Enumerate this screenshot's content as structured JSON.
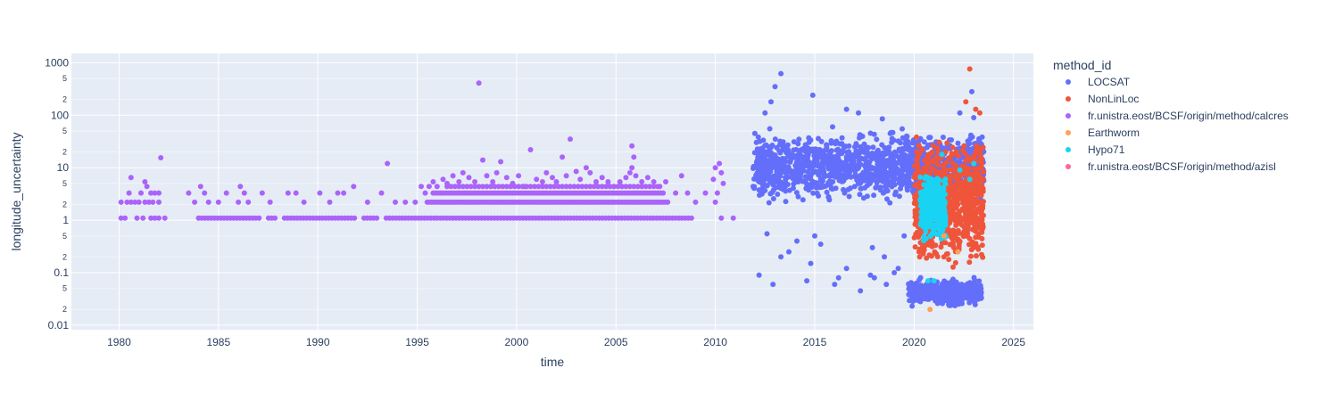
{
  "chart_data": {
    "type": "scatter",
    "xlabel": "time",
    "ylabel": "longitude_uncertainty",
    "y_scale": "log",
    "xlim": [
      1977.6,
      2026.0
    ],
    "ylim": [
      0.0082,
      1500
    ],
    "x_ticks": [
      "1980",
      "1985",
      "1990",
      "1995",
      "2000",
      "2005",
      "2010",
      "2015",
      "2020",
      "2025"
    ],
    "y_major_ticks": [
      "0.01",
      "0.1",
      "1",
      "10",
      "100",
      "1000"
    ],
    "y_minor_ticks": [
      "2",
      "5"
    ],
    "grid": true,
    "plot_background": "#e5ecf6",
    "legend": {
      "title": "method_id",
      "placement": "right",
      "entries": [
        {
          "name": "LOCSAT",
          "color": "#636efa"
        },
        {
          "name": "NonLinLoc",
          "color": "#EF553B"
        },
        {
          "name": "fr.unistra.eost/BCSF/origin/method/calcres",
          "color": "#ab63fa"
        },
        {
          "name": "Earthworm",
          "color": "#FFA15A"
        },
        {
          "name": "Hypo71",
          "color": "#19d3f3"
        },
        {
          "name": "fr.unistra.eost/BCSF/origin/method/azisl",
          "color": "#FF6692"
        }
      ]
    },
    "series": [
      {
        "name": "fr.unistra.eost/BCSF/origin/method/calcres",
        "color": "#ab63fa",
        "points": [
          [
            1980.1,
            1.1
          ],
          [
            1980.3,
            1.1
          ],
          [
            1980.9,
            1.1
          ],
          [
            1981.2,
            1.1
          ],
          [
            1981.6,
            1.1
          ],
          [
            1981.8,
            1.1
          ],
          [
            1982.0,
            1.1
          ],
          [
            1982.3,
            1.1
          ],
          [
            1980.1,
            2.2
          ],
          [
            1980.4,
            2.2
          ],
          [
            1980.6,
            2.2
          ],
          [
            1980.8,
            2.2
          ],
          [
            1981.0,
            2.2
          ],
          [
            1981.3,
            2.2
          ],
          [
            1981.5,
            2.2
          ],
          [
            1981.7,
            2.2
          ],
          [
            1982.0,
            2.2
          ],
          [
            1980.5,
            3.3
          ],
          [
            1981.1,
            3.3
          ],
          [
            1981.6,
            3.3
          ],
          [
            1981.8,
            3.3
          ],
          [
            1982.0,
            3.3
          ],
          [
            1980.6,
            6.5
          ],
          [
            1981.3,
            5.4
          ],
          [
            1981.4,
            4.4
          ],
          [
            1982.1,
            15.5
          ],
          [
            1983.5,
            3.3
          ],
          [
            1983.8,
            2.2
          ],
          [
            1984.1,
            4.4
          ],
          [
            1984.3,
            3.3
          ],
          [
            1984.5,
            2.2
          ],
          [
            1985.0,
            2.2
          ],
          [
            1985.4,
            3.3
          ],
          [
            1986.1,
            4.4
          ],
          [
            1986.3,
            3.3
          ],
          [
            1986.0,
            2.2
          ],
          [
            1986.5,
            2.2
          ],
          [
            1987.2,
            3.3
          ],
          [
            1987.6,
            2.2
          ],
          [
            1988.5,
            3.3
          ],
          [
            1988.9,
            3.3
          ],
          [
            1989.3,
            2.2
          ],
          [
            1990.1,
            3.3
          ],
          [
            1990.6,
            2.2
          ],
          [
            1991.0,
            3.3
          ],
          [
            1991.3,
            3.3
          ],
          [
            1991.8,
            4.4
          ],
          [
            1992.5,
            2.2
          ],
          [
            1993.2,
            3.3
          ],
          [
            1993.5,
            12.0
          ],
          [
            1993.9,
            2.2
          ],
          [
            1994.4,
            2.2
          ],
          [
            1994.9,
            2.2
          ],
          [
            1995.2,
            4.4
          ],
          [
            1995.4,
            3.3
          ],
          [
            1995.6,
            4.4
          ],
          [
            1995.8,
            5.4
          ],
          [
            1996.0,
            4.4
          ],
          [
            1996.3,
            6.0
          ],
          [
            1996.5,
            5.0
          ],
          [
            1996.8,
            7.0
          ],
          [
            1997.1,
            5.4
          ],
          [
            1997.3,
            8.0
          ],
          [
            1997.6,
            6.5
          ],
          [
            1997.9,
            5.4
          ],
          [
            1998.1,
            410
          ],
          [
            1998.3,
            14.0
          ],
          [
            1998.5,
            7.0
          ],
          [
            1998.8,
            5.4
          ],
          [
            1999.0,
            8.0
          ],
          [
            1999.2,
            13.0
          ],
          [
            1999.5,
            6.5
          ],
          [
            1999.8,
            5.0
          ],
          [
            2000.1,
            7.0
          ],
          [
            2000.4,
            4.4
          ],
          [
            2000.7,
            22.0
          ],
          [
            2001.0,
            6.0
          ],
          [
            2001.3,
            5.4
          ],
          [
            2001.5,
            8.0
          ],
          [
            2001.8,
            6.5
          ],
          [
            2002.0,
            5.4
          ],
          [
            2002.3,
            16.0
          ],
          [
            2002.5,
            7.0
          ],
          [
            2002.7,
            35.0
          ],
          [
            2003.0,
            8.5
          ],
          [
            2003.2,
            6.0
          ],
          [
            2003.5,
            10.0
          ],
          [
            2003.7,
            8.0
          ],
          [
            2004.0,
            5.4
          ],
          [
            2004.3,
            6.5
          ],
          [
            2004.6,
            5.4
          ],
          [
            2004.9,
            4.4
          ],
          [
            2005.2,
            5.4
          ],
          [
            2005.5,
            6.5
          ],
          [
            2005.7,
            8.0
          ],
          [
            2005.8,
            10.0
          ],
          [
            2005.9,
            16.0
          ],
          [
            2005.8,
            26.0
          ],
          [
            2006.0,
            7.0
          ],
          [
            2006.3,
            5.4
          ],
          [
            2006.6,
            6.5
          ],
          [
            2006.9,
            5.4
          ],
          [
            2007.2,
            4.4
          ],
          [
            2007.5,
            5.4
          ],
          [
            2008.0,
            3.3
          ],
          [
            2008.3,
            7.0
          ],
          [
            2008.6,
            3.3
          ],
          [
            2009.0,
            2.2
          ],
          [
            2009.5,
            3.3
          ],
          [
            2009.9,
            6.0
          ],
          [
            2010.0,
            10.0
          ],
          [
            2010.2,
            12.0
          ],
          [
            2010.3,
            8.0
          ],
          [
            2010.4,
            5.0
          ],
          [
            2010.1,
            3.3
          ],
          [
            2010.0,
            2.2
          ],
          [
            2010.3,
            1.1
          ],
          [
            2010.9,
            1.1
          ]
        ],
        "bands": [
          {
            "x": [
              1984.0,
              2008.9
            ],
            "y": 1.1,
            "spacing": 0.16,
            "gaps": [
              [
                1987.1,
                1987.5
              ],
              [
                1987.9,
                1988.2
              ],
              [
                1988.5,
                1988.6
              ],
              [
                1992.0,
                1992.3
              ],
              [
                1993.1,
                1993.3
              ]
            ]
          },
          {
            "x": [
              1995.5,
              2007.6
            ],
            "y": 2.2,
            "spacing": 0.11,
            "gaps": []
          },
          {
            "x": [
              1995.8,
              2007.4
            ],
            "y": 3.3,
            "spacing": 0.13,
            "gaps": []
          },
          {
            "x": [
              1996.5,
              2007.2
            ],
            "y": 4.4,
            "spacing": 0.2,
            "gaps": []
          }
        ]
      },
      {
        "name": "LOCSAT",
        "color": "#636efa",
        "points": [
          [
            2013.3,
            620
          ],
          [
            2013.0,
            350
          ],
          [
            2012.8,
            180
          ],
          [
            2014.9,
            240
          ],
          [
            2012.5,
            110
          ],
          [
            2016.6,
            130
          ],
          [
            2017.2,
            110
          ],
          [
            2018.4,
            85
          ],
          [
            2019.4,
            55
          ],
          [
            2022.9,
            280
          ],
          [
            2022.3,
            110
          ],
          [
            2023.0,
            90
          ],
          [
            2018.8,
            45
          ],
          [
            2015.9,
            60
          ],
          [
            2012.6,
            0.55
          ],
          [
            2013.3,
            0.2
          ],
          [
            2014.1,
            0.4
          ],
          [
            2015.3,
            0.35
          ],
          [
            2016.2,
            0.08
          ],
          [
            2017.3,
            0.045
          ],
          [
            2018.6,
            0.06
          ],
          [
            2019.2,
            0.12
          ],
          [
            2012.9,
            0.06
          ],
          [
            2014.6,
            0.07
          ],
          [
            2016.6,
            0.12
          ],
          [
            2017.9,
            0.3
          ],
          [
            2015.0,
            0.5
          ],
          [
            2013.7,
            0.25
          ],
          [
            2012.2,
            0.09
          ],
          [
            2014.8,
            0.15
          ],
          [
            2016.0,
            0.06
          ],
          [
            2018.0,
            0.08
          ],
          [
            2019.5,
            0.5
          ],
          [
            2018.5,
            0.2
          ],
          [
            2017.8,
            0.09
          ],
          [
            2019.0,
            0.1
          ]
        ],
        "bands": [
          {
            "x": [
              2011.9,
              2023.5
            ],
            "y_range": [
              1.8,
              60
            ],
            "count": 1400,
            "seed": 11
          },
          {
            "x": [
              2019.7,
              2023.4
            ],
            "y_range": [
              0.02,
              0.09
            ],
            "count": 450,
            "seed": 19
          }
        ]
      },
      {
        "name": "NonLinLoc",
        "color": "#EF553B",
        "points": [
          [
            2022.8,
            760
          ],
          [
            2023.1,
            130
          ],
          [
            2022.6,
            180
          ],
          [
            2023.3,
            110
          ],
          [
            2021.5,
            0.2
          ],
          [
            2022.0,
            0.3
          ]
        ],
        "bands": [
          {
            "x": [
              2020.0,
              2023.5
            ],
            "y_range": [
              0.09,
              60
            ],
            "count": 900,
            "seed": 23
          }
        ]
      },
      {
        "name": "Hypo71",
        "color": "#19d3f3",
        "points": [
          [
            2020.7,
            0.07
          ],
          [
            2021.0,
            0.07
          ],
          [
            2021.4,
            18
          ],
          [
            2022.3,
            9
          ],
          [
            2022.8,
            6
          ],
          [
            2023.0,
            12
          ]
        ],
        "bands": [
          {
            "x": [
              2020.3,
              2021.6
            ],
            "y_range": [
              0.3,
              12
            ],
            "count": 260,
            "seed": 31
          }
        ]
      },
      {
        "name": "Earthworm",
        "color": "#FFA15A",
        "points": [
          [
            2020.8,
            0.02
          ],
          [
            2021.5,
            0.5
          ],
          [
            2022.2,
            0.25
          ]
        ],
        "bands": []
      },
      {
        "name": "fr.unistra.eost/BCSF/origin/method/azisl",
        "color": "#FF6692",
        "points": [],
        "bands": []
      }
    ]
  }
}
